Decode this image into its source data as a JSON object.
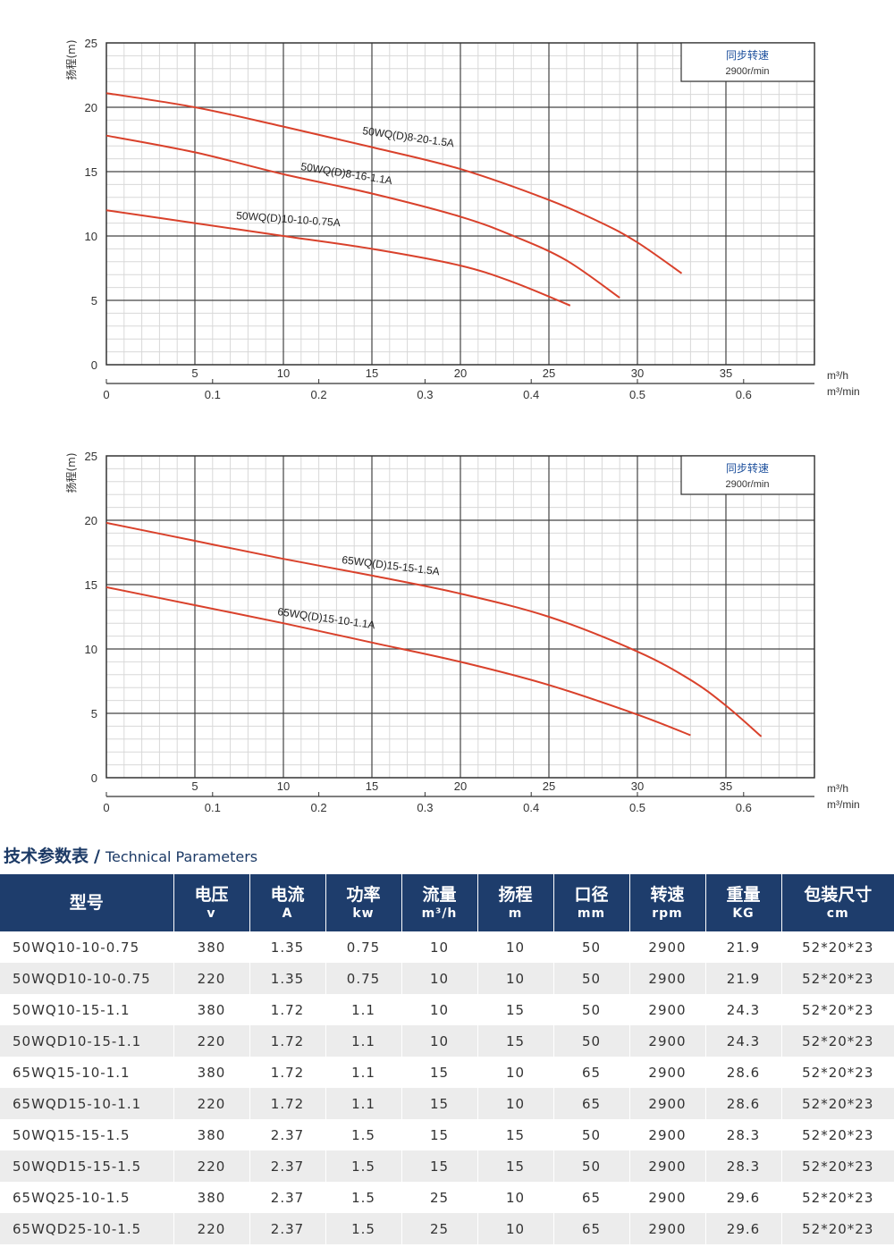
{
  "chart_data": [
    {
      "type": "line",
      "ylabel": "扬程(m)",
      "x_unit_top": "m³/h",
      "x_unit_bottom": "m³/min",
      "ylim": [
        0,
        25
      ],
      "xlim": [
        0,
        40
      ],
      "yticks": [
        "0",
        "5",
        "10",
        "15",
        "20",
        "25"
      ],
      "xticks_top": [
        "5",
        "10",
        "15",
        "20",
        "25",
        "30",
        "35"
      ],
      "xticks_bottom": [
        "0",
        "0.1",
        "0.2",
        "0.3",
        "0.4",
        "0.5",
        "0.6"
      ],
      "grid": true,
      "legend_box": {
        "line1": "同步转速",
        "line2": "2900r/min",
        "placement": "top-right"
      },
      "series": [
        {
          "name": "50WQ(D)8-20-1.5A",
          "color": "#d9412b",
          "x": [
            0,
            5,
            10,
            15,
            20,
            25,
            28,
            30,
            32.5
          ],
          "y": [
            21.1,
            20.0,
            18.5,
            16.9,
            15.2,
            12.8,
            11.0,
            9.5,
            7.1
          ]
        },
        {
          "name": "50WQ(D)8-16-1.1A",
          "color": "#d9412b",
          "x": [
            0,
            5,
            10,
            15,
            20,
            23,
            26,
            29
          ],
          "y": [
            17.8,
            16.5,
            14.8,
            13.3,
            11.5,
            10.0,
            8.1,
            5.2
          ]
        },
        {
          "name": "50WQ(D)10-10-0.75A",
          "color": "#d9412b",
          "x": [
            0,
            5,
            10,
            15,
            20,
            23,
            26.2
          ],
          "y": [
            12.0,
            11.0,
            10.0,
            9.0,
            7.7,
            6.4,
            4.6
          ]
        }
      ]
    },
    {
      "type": "line",
      "ylabel": "扬程(m)",
      "x_unit_top": "m³/h",
      "x_unit_bottom": "m³/min",
      "ylim": [
        0,
        25
      ],
      "xlim": [
        0,
        40
      ],
      "yticks": [
        "0",
        "5",
        "10",
        "15",
        "20",
        "25"
      ],
      "xticks_top": [
        "5",
        "10",
        "15",
        "20",
        "25",
        "30",
        "35"
      ],
      "xticks_bottom": [
        "0",
        "0.1",
        "0.2",
        "0.3",
        "0.4",
        "0.5",
        "0.6"
      ],
      "grid": true,
      "legend_box": {
        "line1": "同步转速",
        "line2": "2900r/min",
        "placement": "top-right"
      },
      "series": [
        {
          "name": "65WQ(D)15-15-1.5A",
          "color": "#d9412b",
          "x": [
            0,
            5,
            10,
            15,
            20,
            25,
            30,
            33,
            35,
            37
          ],
          "y": [
            19.8,
            18.4,
            17.0,
            15.7,
            14.3,
            12.5,
            9.8,
            7.6,
            5.6,
            3.2
          ]
        },
        {
          "name": "65WQ(D)15-10-1.1A",
          "color": "#d9412b",
          "x": [
            0,
            5,
            10,
            15,
            20,
            25,
            30,
            33
          ],
          "y": [
            14.8,
            13.4,
            12.0,
            10.5,
            9.0,
            7.2,
            4.9,
            3.3
          ]
        }
      ]
    }
  ],
  "params_section": {
    "title_zh": "技术参数表",
    "separator": "/",
    "title_en": "Technical Parameters"
  },
  "table": {
    "headers": [
      {
        "zh": "型号",
        "unit": ""
      },
      {
        "zh": "电压",
        "unit": "v"
      },
      {
        "zh": "电流",
        "unit": "A"
      },
      {
        "zh": "功率",
        "unit": "kw"
      },
      {
        "zh": "流量",
        "unit": "m³/h"
      },
      {
        "zh": "扬程",
        "unit": "m"
      },
      {
        "zh": "口径",
        "unit": "mm"
      },
      {
        "zh": "转速",
        "unit": "rpm"
      },
      {
        "zh": "重量",
        "unit": "KG"
      },
      {
        "zh": "包装尺寸",
        "unit": "cm"
      }
    ],
    "rows": [
      [
        "50WQ10-10-0.75",
        "380",
        "1.35",
        "0.75",
        "10",
        "10",
        "50",
        "2900",
        "21.9",
        "52*20*23"
      ],
      [
        "50WQD10-10-0.75",
        "220",
        "1.35",
        "0.75",
        "10",
        "10",
        "50",
        "2900",
        "21.9",
        "52*20*23"
      ],
      [
        "50WQ10-15-1.1",
        "380",
        "1.72",
        "1.1",
        "10",
        "15",
        "50",
        "2900",
        "24.3",
        "52*20*23"
      ],
      [
        "50WQD10-15-1.1",
        "220",
        "1.72",
        "1.1",
        "10",
        "15",
        "50",
        "2900",
        "24.3",
        "52*20*23"
      ],
      [
        "65WQ15-10-1.1",
        "380",
        "1.72",
        "1.1",
        "15",
        "10",
        "65",
        "2900",
        "28.6",
        "52*20*23"
      ],
      [
        "65WQD15-10-1.1",
        "220",
        "1.72",
        "1.1",
        "15",
        "10",
        "65",
        "2900",
        "28.6",
        "52*20*23"
      ],
      [
        "50WQ15-15-1.5",
        "380",
        "2.37",
        "1.5",
        "15",
        "15",
        "50",
        "2900",
        "28.3",
        "52*20*23"
      ],
      [
        "50WQD15-15-1.5",
        "220",
        "2.37",
        "1.5",
        "15",
        "15",
        "50",
        "2900",
        "28.3",
        "52*20*23"
      ],
      [
        "65WQ25-10-1.5",
        "380",
        "2.37",
        "1.5",
        "25",
        "10",
        "65",
        "2900",
        "29.6",
        "52*20*23"
      ],
      [
        "65WQD25-10-1.5",
        "220",
        "2.37",
        "1.5",
        "25",
        "10",
        "65",
        "2900",
        "29.6",
        "52*20*23"
      ]
    ]
  }
}
